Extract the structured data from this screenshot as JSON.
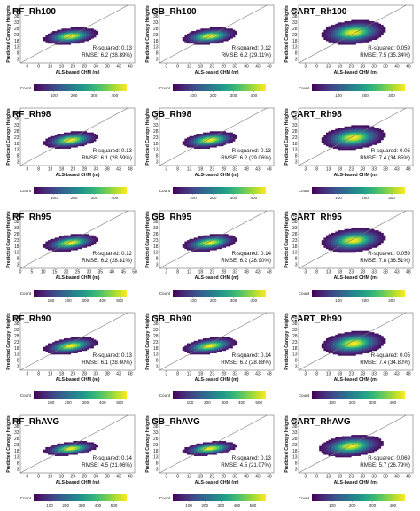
{
  "chart_data": [
    {
      "type": "heatmap",
      "title": "RF_Rh100",
      "xlabel": "ALS-based CHM (m)",
      "ylabel": "Predicted Canopy Heights",
      "xticks": [
        "3",
        "8",
        "13",
        "18",
        "23",
        "28",
        "33",
        "38",
        "43",
        "48"
      ],
      "yticks": [
        "3",
        "8",
        "13",
        "18",
        "23",
        "28",
        "33",
        "38",
        "43"
      ],
      "xlim": [
        0,
        50
      ],
      "ylim": [
        0,
        47
      ],
      "r_squared_label": "R-squared: 0.13",
      "rmse_label": "RMSE: 6.2 (28.89%)",
      "r_squared": 0.13,
      "rmse": 6.2,
      "rmse_pct": 28.89,
      "colorbar_label": "Count",
      "colorbar_ticks": [
        "100",
        "200",
        "300",
        "400"
      ],
      "colorbar_max": 460,
      "density": {
        "center_x": 22,
        "center_y": 22,
        "spread_x": 11,
        "spread_y": 6,
        "slope": 0.18
      }
    },
    {
      "type": "heatmap",
      "title": "GB_Rh100",
      "xlabel": "ALS-based CHM (m)",
      "ylabel": "Predicted Canopy Heights",
      "xticks": [
        "3",
        "8",
        "13",
        "18",
        "23",
        "28",
        "33",
        "38",
        "43",
        "48"
      ],
      "yticks": [
        "3",
        "8",
        "13",
        "18",
        "23",
        "28",
        "33",
        "38",
        "43"
      ],
      "xlim": [
        0,
        50
      ],
      "ylim": [
        0,
        47
      ],
      "r_squared_label": "R-squared: 0.12",
      "rmse_label": "RMSE: 6.2 (29.11%)",
      "r_squared": 0.12,
      "rmse": 6.2,
      "rmse_pct": 29.11,
      "colorbar_label": "Count",
      "colorbar_ticks": [
        "100",
        "200",
        "300",
        "400"
      ],
      "colorbar_max": 460,
      "density": {
        "center_x": 22,
        "center_y": 22,
        "spread_x": 11,
        "spread_y": 6,
        "slope": 0.18
      }
    },
    {
      "type": "heatmap",
      "title": "CART_Rh100",
      "xlabel": "ALS-based CHM (m)",
      "ylabel": "Predicted Canopy Heights",
      "xticks": [
        "3",
        "8",
        "13",
        "18",
        "23",
        "28",
        "33",
        "38",
        "43",
        "48"
      ],
      "yticks": [
        "3",
        "8",
        "13",
        "18",
        "23",
        "28",
        "33",
        "38",
        "43"
      ],
      "xlim": [
        0,
        50
      ],
      "ylim": [
        0,
        47
      ],
      "r_squared_label": "R-squared: 0.059",
      "rmse_label": "RMSE: 7.5 (35.34%)",
      "r_squared": 0.059,
      "rmse": 7.5,
      "rmse_pct": 35.34,
      "colorbar_label": "Count",
      "colorbar_ticks": [
        "100",
        "200",
        "300"
      ],
      "colorbar_max": 350,
      "density": {
        "center_x": 24,
        "center_y": 25,
        "spread_x": 13,
        "spread_y": 9,
        "slope": 0.15
      }
    },
    {
      "type": "heatmap",
      "title": "RF_Rh98",
      "xlabel": "ALS-based CHM (m)",
      "ylabel": "Predicted Canopy Heights",
      "xticks": [
        "3",
        "8",
        "13",
        "18",
        "23",
        "28",
        "33",
        "38",
        "43",
        "48"
      ],
      "yticks": [
        "3",
        "8",
        "13",
        "18",
        "23",
        "28",
        "33",
        "38",
        "43"
      ],
      "xlim": [
        0,
        50
      ],
      "ylim": [
        0,
        47
      ],
      "r_squared_label": "R-squared: 0.13",
      "rmse_label": "RMSE: 6.1 (28.59%)",
      "r_squared": 0.13,
      "rmse": 6.1,
      "rmse_pct": 28.59,
      "colorbar_label": "Count",
      "colorbar_ticks": [
        "100",
        "200",
        "300",
        "400"
      ],
      "colorbar_max": 460,
      "density": {
        "center_x": 22,
        "center_y": 21,
        "spread_x": 11,
        "spread_y": 6,
        "slope": 0.2
      }
    },
    {
      "type": "heatmap",
      "title": "GB_Rh98",
      "xlabel": "ALS-based CHM (m)",
      "ylabel": "Predicted Canopy Heights",
      "xticks": [
        "3",
        "8",
        "13",
        "18",
        "23",
        "28",
        "33",
        "38",
        "43",
        "48"
      ],
      "yticks": [
        "3",
        "8",
        "13",
        "18",
        "23",
        "28",
        "33",
        "38",
        "43"
      ],
      "xlim": [
        0,
        50
      ],
      "ylim": [
        0,
        47
      ],
      "r_squared_label": "R-squared: 0.13",
      "rmse_label": "RMSE: 6.2 (29.06%)",
      "r_squared": 0.13,
      "rmse": 6.2,
      "rmse_pct": 29.06,
      "colorbar_label": "Count",
      "colorbar_ticks": [
        "100",
        "200",
        "300",
        "400"
      ],
      "colorbar_max": 460,
      "density": {
        "center_x": 22,
        "center_y": 21,
        "spread_x": 11,
        "spread_y": 6,
        "slope": 0.2
      }
    },
    {
      "type": "heatmap",
      "title": "CART_Rh98",
      "xlabel": "ALS-based CHM (m)",
      "ylabel": "Predicted Canopy Heights",
      "xticks": [
        "3",
        "8",
        "13",
        "18",
        "23",
        "28",
        "33",
        "38",
        "43",
        "48"
      ],
      "yticks": [
        "3",
        "8",
        "13",
        "18",
        "23",
        "28",
        "33",
        "38",
        "43"
      ],
      "xlim": [
        0,
        50
      ],
      "ylim": [
        0,
        47
      ],
      "r_squared_label": "R-squared: 0.06",
      "rmse_label": "RMSE: 7.4 (34.85%)",
      "r_squared": 0.06,
      "rmse": 7.4,
      "rmse_pct": 34.85,
      "colorbar_label": "Count",
      "colorbar_ticks": [
        "100",
        "200",
        "300"
      ],
      "colorbar_max": 350,
      "density": {
        "center_x": 24,
        "center_y": 23,
        "spread_x": 13,
        "spread_y": 9,
        "slope": 0.15
      }
    },
    {
      "type": "heatmap",
      "title": "RF_Rh95",
      "xlabel": "ALS-based CHM (m)",
      "ylabel": "Predicted Canopy Heights",
      "xticks": [
        "0",
        "5",
        "10",
        "15",
        "20",
        "25",
        "30",
        "35",
        "40",
        "45",
        "50"
      ],
      "yticks": [
        "3",
        "8",
        "13",
        "18",
        "23",
        "28",
        "33",
        "38",
        "43"
      ],
      "xlim": [
        0,
        50
      ],
      "ylim": [
        0,
        47
      ],
      "r_squared_label": "R-squared: 0.12",
      "rmse_label": "RMSE: 6.2 (28.81%)",
      "r_squared": 0.12,
      "rmse": 6.2,
      "rmse_pct": 28.81,
      "colorbar_label": "Count",
      "colorbar_ticks": [
        "100",
        "200",
        "300",
        "400",
        "500"
      ],
      "colorbar_max": 540,
      "density": {
        "center_x": 22,
        "center_y": 21,
        "spread_x": 11,
        "spread_y": 6,
        "slope": 0.22
      }
    },
    {
      "type": "heatmap",
      "title": "GB_Rh95",
      "xlabel": "ALS-based CHM (m)",
      "ylabel": "Predicted Canopy Heights",
      "xticks": [
        "3",
        "8",
        "13",
        "18",
        "23",
        "28",
        "33",
        "38",
        "43",
        "48"
      ],
      "yticks": [
        "3",
        "8",
        "13",
        "18",
        "23",
        "28",
        "33",
        "38",
        "43"
      ],
      "xlim": [
        0,
        50
      ],
      "ylim": [
        0,
        47
      ],
      "r_squared_label": "R-squared: 0.14",
      "rmse_label": "RMSE: 6.2 (28.90%)",
      "r_squared": 0.14,
      "rmse": 6.2,
      "rmse_pct": 28.9,
      "colorbar_label": "Count",
      "colorbar_ticks": [
        "100",
        "200",
        "300",
        "400"
      ],
      "colorbar_max": 460,
      "density": {
        "center_x": 22,
        "center_y": 21,
        "spread_x": 11,
        "spread_y": 6,
        "slope": 0.22
      }
    },
    {
      "type": "heatmap",
      "title": "CART_Rh95",
      "xlabel": "ALS-based CHM (m)",
      "ylabel": "Predicted Canopy Heights",
      "xticks": [
        "3",
        "8",
        "13",
        "18",
        "23",
        "28",
        "33",
        "38",
        "43",
        "48"
      ],
      "yticks": [
        "3",
        "8",
        "13",
        "18",
        "23",
        "28",
        "33",
        "38",
        "43"
      ],
      "xlim": [
        0,
        50
      ],
      "ylim": [
        0,
        47
      ],
      "r_squared_label": "R-squared: 0.059",
      "rmse_label": "RMSE: 7.8 (36.51%)",
      "r_squared": 0.059,
      "rmse": 7.8,
      "rmse_pct": 36.51,
      "colorbar_label": "Count",
      "colorbar_ticks": [
        "100",
        "200",
        "300"
      ],
      "colorbar_max": 350,
      "density": {
        "center_x": 24,
        "center_y": 23,
        "spread_x": 13,
        "spread_y": 9,
        "slope": 0.15
      }
    },
    {
      "type": "heatmap",
      "title": "RF_Rh90",
      "xlabel": "ALS-based CHM (m)",
      "ylabel": "Predicted Canopy Heights",
      "xticks": [
        "3",
        "8",
        "13",
        "18",
        "23",
        "28",
        "33",
        "38",
        "43",
        "48"
      ],
      "yticks": [
        "3",
        "8",
        "13",
        "18",
        "23",
        "28",
        "33",
        "38",
        "43"
      ],
      "xlim": [
        0,
        50
      ],
      "ylim": [
        0,
        47
      ],
      "r_squared_label": "R-squared: 0.13",
      "rmse_label": "RMSE: 6.1 (28.60%)",
      "r_squared": 0.13,
      "rmse": 6.1,
      "rmse_pct": 28.6,
      "colorbar_label": "Count",
      "colorbar_ticks": [
        "100",
        "200",
        "300",
        "400",
        "500"
      ],
      "colorbar_max": 540,
      "density": {
        "center_x": 22,
        "center_y": 20,
        "spread_x": 11,
        "spread_y": 6,
        "slope": 0.24
      }
    },
    {
      "type": "heatmap",
      "title": "GB_Rh90",
      "xlabel": "ALS-based CHM (m)",
      "ylabel": "Predicted Canopy Heights",
      "xticks": [
        "3",
        "8",
        "13",
        "18",
        "23",
        "28",
        "33",
        "38",
        "43",
        "48"
      ],
      "yticks": [
        "3",
        "8",
        "13",
        "18",
        "23",
        "28",
        "33",
        "38",
        "43"
      ],
      "xlim": [
        0,
        50
      ],
      "ylim": [
        0,
        47
      ],
      "r_squared_label": "R-squared: 0.14",
      "rmse_label": "RMSE: 6.2 (28.88%)",
      "r_squared": 0.14,
      "rmse": 6.2,
      "rmse_pct": 28.88,
      "colorbar_label": "Count",
      "colorbar_ticks": [
        "100",
        "200",
        "300",
        "400",
        "500"
      ],
      "colorbar_max": 540,
      "density": {
        "center_x": 22,
        "center_y": 20,
        "spread_x": 11,
        "spread_y": 6,
        "slope": 0.24
      }
    },
    {
      "type": "heatmap",
      "title": "CART_Rh90",
      "xlabel": "ALS-based CHM (m)",
      "ylabel": "Predicted Canopy Heights",
      "xticks": [
        "3",
        "8",
        "13",
        "18",
        "23",
        "28",
        "33",
        "38",
        "43",
        "48"
      ],
      "yticks": [
        "3",
        "8",
        "13",
        "18",
        "23",
        "28",
        "33",
        "38",
        "43"
      ],
      "xlim": [
        0,
        50
      ],
      "ylim": [
        0,
        47
      ],
      "r_squared_label": "R-squared: 0.05",
      "rmse_label": "RMSE: 7.4 (34.80%)",
      "r_squared": 0.05,
      "rmse": 7.4,
      "rmse_pct": 34.8,
      "colorbar_label": "Count",
      "colorbar_ticks": [
        "100",
        "200",
        "300",
        "400"
      ],
      "colorbar_max": 460,
      "density": {
        "center_x": 24,
        "center_y": 22,
        "spread_x": 13,
        "spread_y": 9,
        "slope": 0.15
      }
    },
    {
      "type": "heatmap",
      "title": "RF_RhAVG",
      "xlabel": "ALS-based CHM (m)",
      "ylabel": "Predicted Canopy Heights",
      "xticks": [
        "3",
        "8",
        "13",
        "18",
        "23",
        "28",
        "33",
        "38",
        "43",
        "48"
      ],
      "yticks": [
        "3",
        "8",
        "13",
        "18",
        "23",
        "28",
        "33",
        "38",
        "43"
      ],
      "xlim": [
        0,
        50
      ],
      "ylim": [
        0,
        47
      ],
      "r_squared_label": "R-squared: 0.14",
      "rmse_label": "RMSE: 4.5 (21.06%)",
      "r_squared": 0.14,
      "rmse": 4.5,
      "rmse_pct": 21.06,
      "colorbar_label": "Count",
      "colorbar_ticks": [
        "100",
        "200",
        "300",
        "400",
        "500"
      ],
      "colorbar_max": 580,
      "density": {
        "center_x": 22,
        "center_y": 20,
        "spread_x": 11,
        "spread_y": 5,
        "slope": 0.18
      }
    },
    {
      "type": "heatmap",
      "title": "GB_RhAVG",
      "xlabel": "ALS-based CHM (m)",
      "ylabel": "Predicted Canopy Heights",
      "xticks": [
        "3",
        "8",
        "13",
        "18",
        "23",
        "28",
        "33",
        "38",
        "43",
        "48"
      ],
      "yticks": [
        "3",
        "8",
        "13",
        "18",
        "23",
        "28",
        "33",
        "38",
        "43"
      ],
      "xlim": [
        0,
        50
      ],
      "ylim": [
        0,
        47
      ],
      "r_squared_label": "R-squared: 0.13",
      "rmse_label": "RMSE: 4.5 (21.07%)",
      "r_squared": 0.13,
      "rmse": 4.5,
      "rmse_pct": 21.07,
      "colorbar_label": "Count",
      "colorbar_ticks": [
        "100",
        "200",
        "300",
        "400",
        "500"
      ],
      "colorbar_max": 580,
      "density": {
        "center_x": 22,
        "center_y": 20,
        "spread_x": 11,
        "spread_y": 5,
        "slope": 0.18
      }
    },
    {
      "type": "heatmap",
      "title": "CART_RhAVG",
      "xlabel": "ALS-based CHM (m)",
      "ylabel": "Predicted Canopy Heights",
      "xticks": [
        "3",
        "8",
        "13",
        "18",
        "23",
        "28",
        "33",
        "38",
        "43",
        "48"
      ],
      "yticks": [
        "3",
        "8",
        "13",
        "18",
        "23",
        "28",
        "33",
        "38",
        "43"
      ],
      "xlim": [
        0,
        50
      ],
      "ylim": [
        0,
        47
      ],
      "r_squared_label": "R-squared: 0.069",
      "rmse_label": "RMSE: 5.7 (26.79%)",
      "r_squared": 0.069,
      "rmse": 5.7,
      "rmse_pct": 26.79,
      "colorbar_label": "Count",
      "colorbar_ticks": [
        "100",
        "200",
        "300",
        "400"
      ],
      "colorbar_max": 460,
      "density": {
        "center_x": 23,
        "center_y": 22,
        "spread_x": 13,
        "spread_y": 8,
        "slope": 0.15
      }
    }
  ]
}
